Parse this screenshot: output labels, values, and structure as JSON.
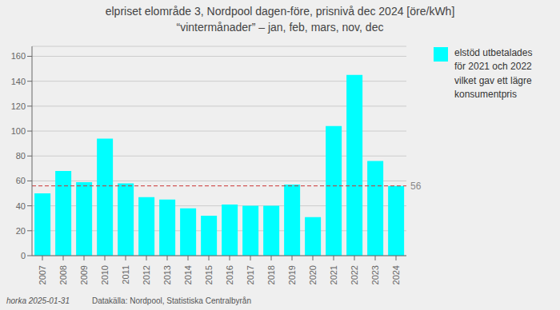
{
  "chart_data": {
    "type": "bar",
    "title": "elpriset elområde 3, Nordpool dagen-före, prisnivå dec 2024 [öre/kWh]",
    "subtitle": "“vintermånader” – jan, feb, mars, nov, dec",
    "categories": [
      "2007",
      "2008",
      "2009",
      "2010",
      "2011",
      "2012",
      "2013",
      "2014",
      "2015",
      "2016",
      "2017",
      "2018",
      "2019",
      "2020",
      "2021",
      "2022",
      "2023",
      "2024"
    ],
    "series": [
      {
        "name": "elstöd utbetalades\nför 2021 och 2022\nvilket gav ett lägre\nkonsumentpris",
        "color": "#00FFFF",
        "values": [
          50,
          68,
          59,
          94,
          58,
          47,
          45,
          38,
          32,
          41,
          40,
          40,
          57,
          31,
          104,
          145,
          76,
          56
        ]
      }
    ],
    "ylim": [
      0,
      168
    ],
    "yticks": [
      0,
      20,
      40,
      60,
      80,
      100,
      120,
      140,
      160
    ],
    "grid": true,
    "legend": "right",
    "annotations": [
      {
        "type": "hline",
        "value": 56,
        "color": "#cc3333"
      },
      {
        "text": "horka 2025-01-31"
      },
      {
        "text": "Datakälla: Nordpool, Statistiska Centralbyrån"
      }
    ]
  }
}
